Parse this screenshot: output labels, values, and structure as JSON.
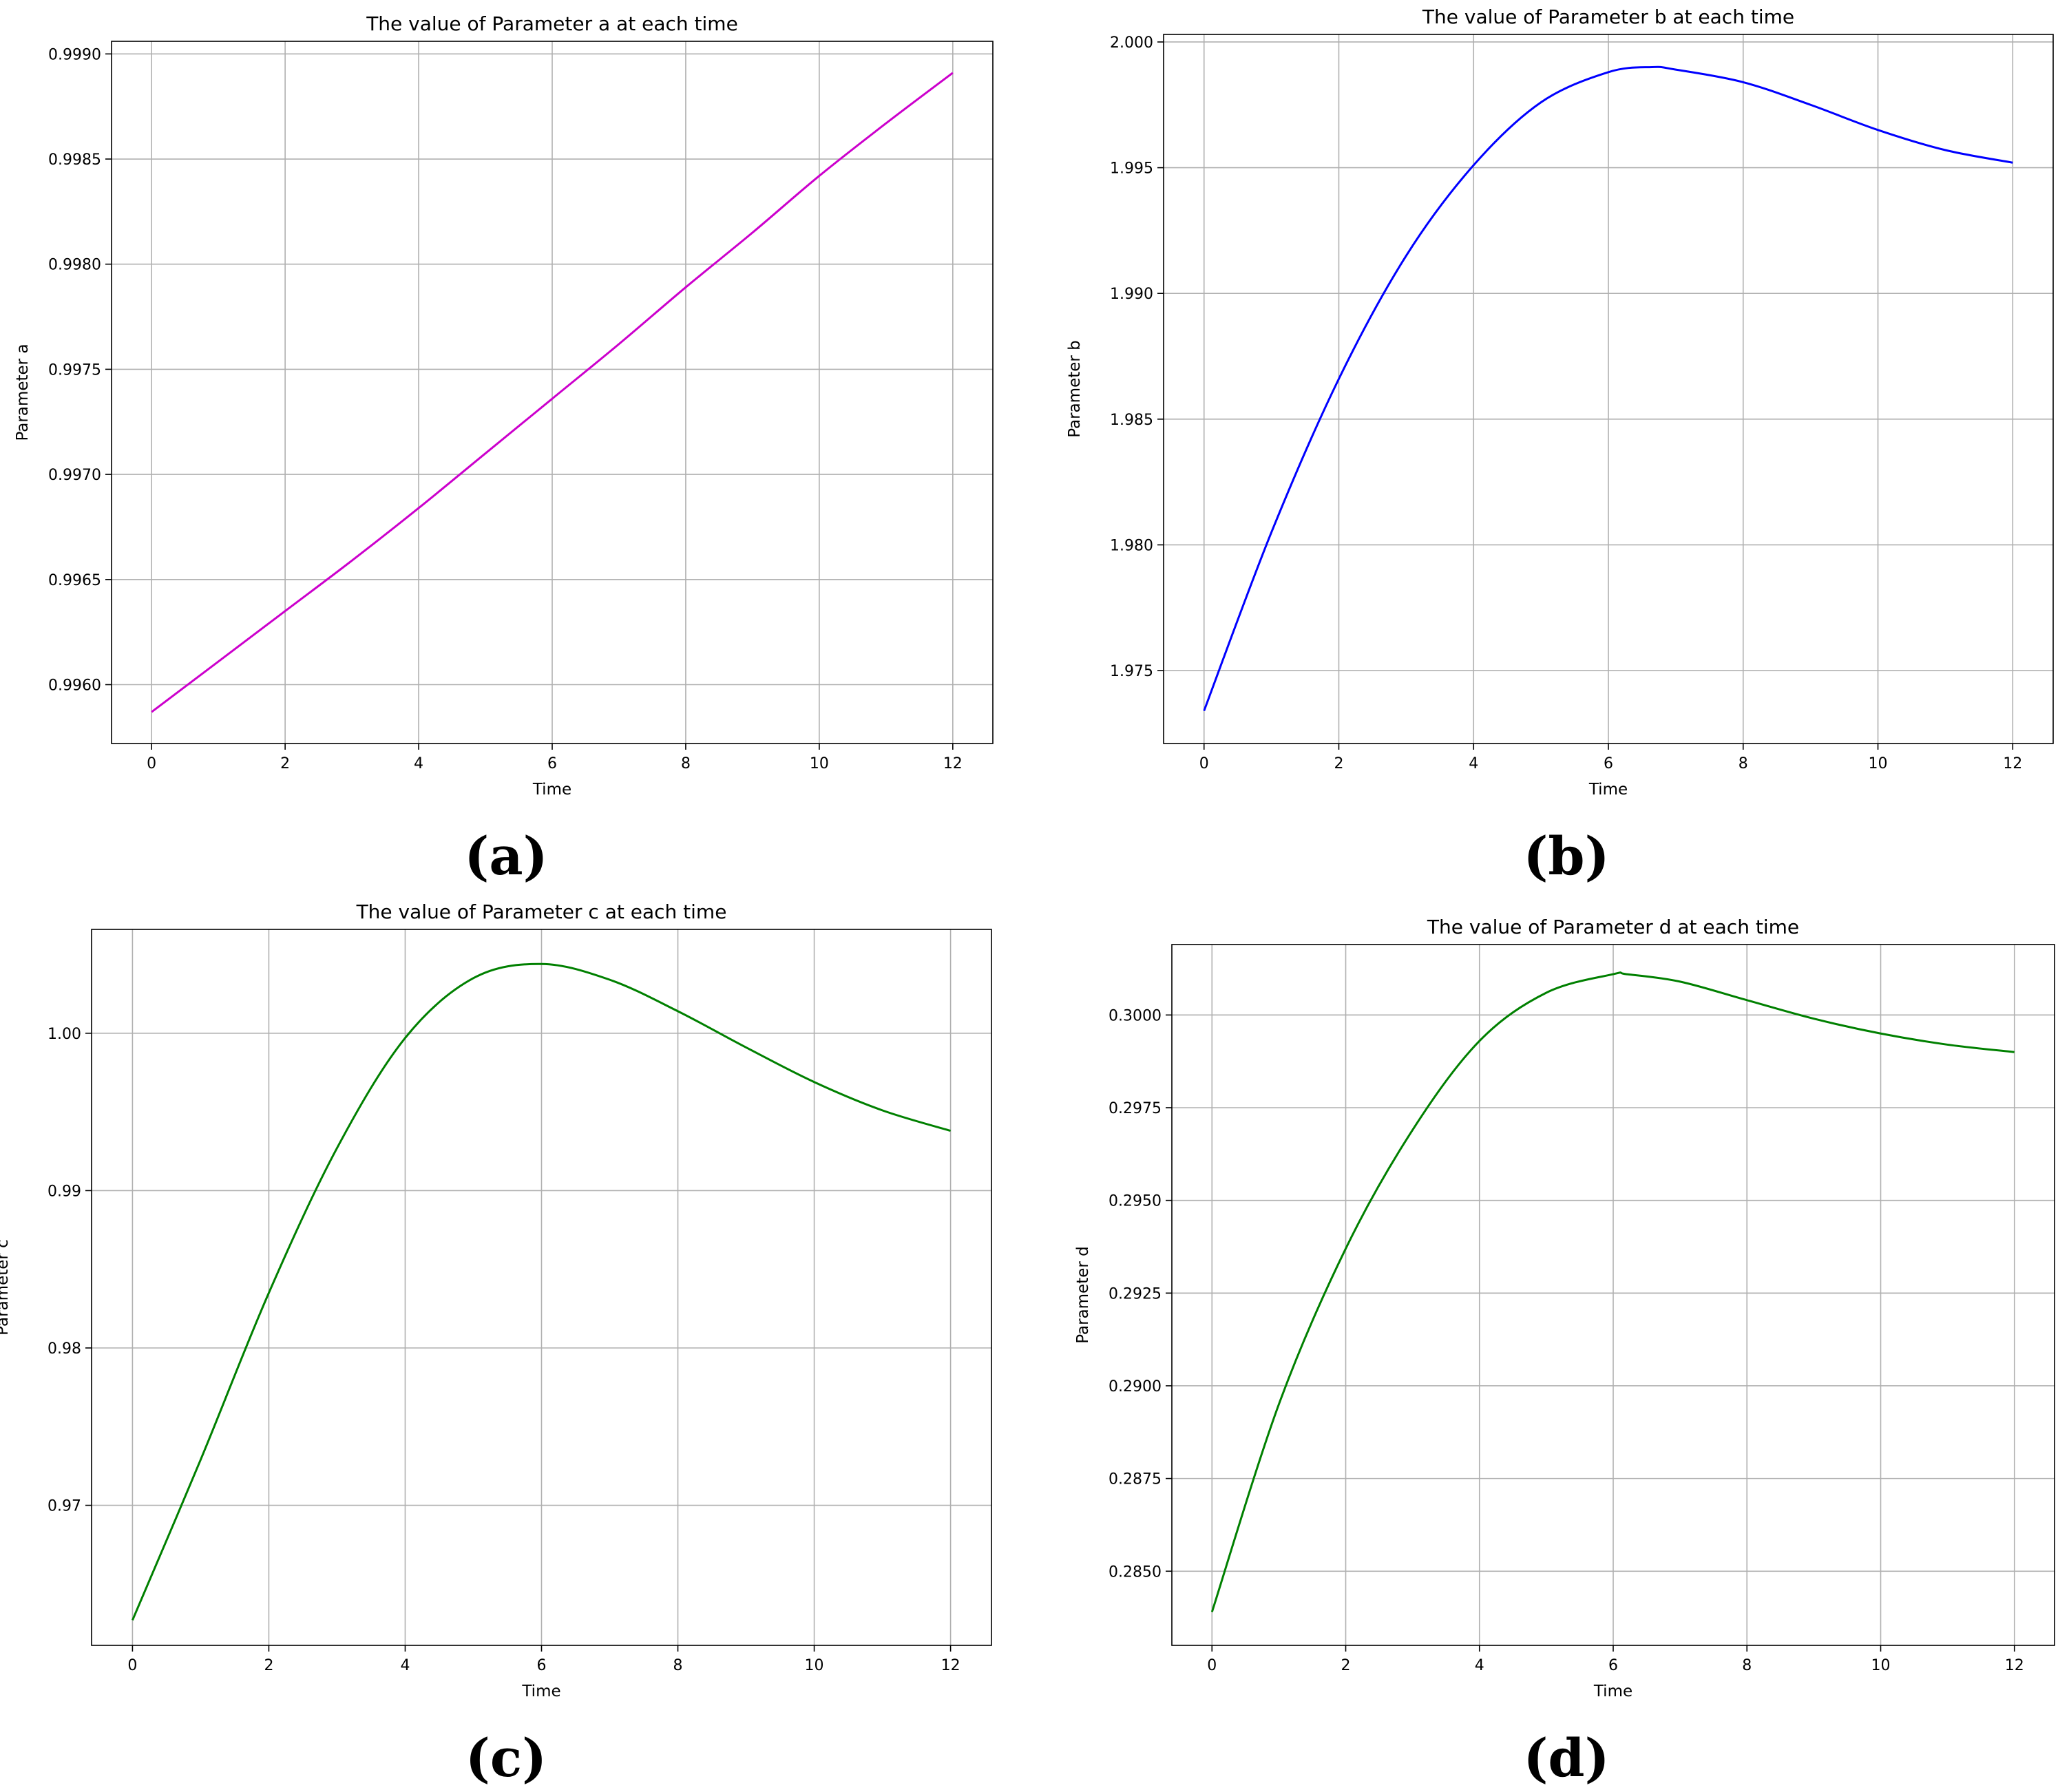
{
  "figure": {
    "panel_labels": [
      "(a)",
      "(b)",
      "(c)",
      "(d)"
    ]
  },
  "chart_data": [
    {
      "id": "a",
      "type": "line",
      "title": "The value of Parameter a at each time",
      "xlabel": "Time",
      "ylabel": "Parameter a",
      "xlim": [
        -0.6,
        12.6
      ],
      "ylim": [
        0.99572,
        0.99906
      ],
      "xticks": [
        0,
        2,
        4,
        6,
        8,
        10,
        12
      ],
      "yticks": [
        0.996,
        0.9965,
        0.997,
        0.9975,
        0.998,
        0.9985,
        0.999
      ],
      "ytick_labels": [
        "0.9960",
        "0.9965",
        "0.9970",
        "0.9975",
        "0.9980",
        "0.9985",
        "0.9990"
      ],
      "color": "#cc00cc",
      "grid": true,
      "x": [
        0,
        1,
        2,
        3,
        4,
        5,
        6,
        7,
        8,
        9,
        10,
        11,
        12
      ],
      "y": [
        0.99587,
        0.99611,
        0.99635,
        0.99659,
        0.99684,
        0.9971,
        0.99736,
        0.99762,
        0.99789,
        0.99815,
        0.99842,
        0.99867,
        0.99891
      ]
    },
    {
      "id": "b",
      "type": "line",
      "title": "The value of Parameter b at each time",
      "xlabel": "Time",
      "ylabel": "Parameter b",
      "xlim": [
        -0.6,
        12.6
      ],
      "ylim": [
        1.9721,
        2.0003
      ],
      "xticks": [
        0,
        2,
        4,
        6,
        8,
        10,
        12
      ],
      "yticks": [
        1.975,
        1.98,
        1.985,
        1.99,
        1.995,
        2.0
      ],
      "ytick_labels": [
        "1.975",
        "1.980",
        "1.985",
        "1.990",
        "1.995",
        "2.000"
      ],
      "color": "#0000ff",
      "grid": true,
      "x": [
        0,
        1,
        2,
        3,
        4,
        5,
        6,
        6.65,
        7,
        8,
        9,
        10,
        11,
        12
      ],
      "y": [
        1.9734,
        1.9805,
        1.9866,
        1.9915,
        1.9951,
        1.9976,
        1.9988,
        1.999,
        1.9989,
        1.9984,
        1.9975,
        1.9965,
        1.9957,
        1.9952
      ]
    },
    {
      "id": "c",
      "type": "line",
      "title": "The value of Parameter c at each time",
      "xlabel": "Time",
      "ylabel": "Parameter c",
      "xlim": [
        -0.6,
        12.6
      ],
      "ylim": [
        0.9611,
        1.0066
      ],
      "xticks": [
        0,
        2,
        4,
        6,
        8,
        10,
        12
      ],
      "yticks": [
        0.97,
        0.98,
        0.99,
        1.0
      ],
      "ytick_labels": [
        "0.97",
        "0.98",
        "0.99",
        "1.00"
      ],
      "color": "#008000",
      "grid": true,
      "x": [
        0,
        1,
        2,
        3,
        4,
        5,
        6,
        7,
        8,
        9,
        10,
        11,
        12
      ],
      "y": [
        0.9627,
        0.9729,
        0.9835,
        0.9927,
        0.9997,
        1.0035,
        1.0044,
        1.0034,
        1.0014,
        0.9991,
        0.9969,
        0.9951,
        0.9938
      ]
    },
    {
      "id": "d",
      "type": "line",
      "title": "The value of Parameter d at each time",
      "xlabel": "Time",
      "ylabel": "Parameter d",
      "xlim": [
        -0.6,
        12.6
      ],
      "ylim": [
        0.283,
        0.3019
      ],
      "xticks": [
        0,
        2,
        4,
        6,
        8,
        10,
        12
      ],
      "yticks": [
        0.285,
        0.2875,
        0.29,
        0.2925,
        0.295,
        0.2975,
        0.3
      ],
      "ytick_labels": [
        "0.2850",
        "0.2875",
        "0.2900",
        "0.2925",
        "0.2950",
        "0.2975",
        "0.3000"
      ],
      "color": "#008000",
      "grid": true,
      "x": [
        0,
        1,
        2,
        3,
        4,
        5,
        6,
        6.2,
        7,
        8,
        9,
        10,
        11,
        12
      ],
      "y": [
        0.2839,
        0.2895,
        0.2937,
        0.2969,
        0.2993,
        0.3006,
        0.3011,
        0.3011,
        0.3009,
        0.3004,
        0.2999,
        0.2995,
        0.2992,
        0.299
      ]
    }
  ]
}
